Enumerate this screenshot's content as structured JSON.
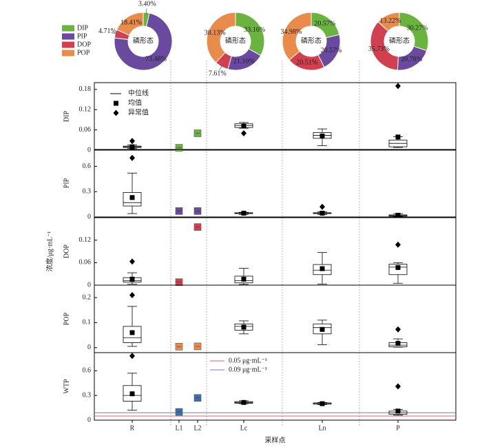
{
  "chart_data": [
    {
      "type": "pie",
      "center_label": "磷形态",
      "categories": [
        "DIP",
        "PIP",
        "DOP",
        "POP"
      ],
      "colors": [
        "#6ab33f",
        "#6a4a9e",
        "#d1404f",
        "#e98b4a"
      ],
      "values": [
        3.4,
        73.48,
        4.71,
        18.41
      ],
      "value_labels": [
        "3.40%",
        "73.48%",
        "4.71%",
        "18.41%"
      ]
    },
    {
      "type": "pie",
      "center_label": "磷形态",
      "categories": [
        "DIP",
        "PIP",
        "DOP",
        "POP"
      ],
      "colors": [
        "#6ab33f",
        "#6a4a9e",
        "#d1404f",
        "#e98b4a"
      ],
      "values": [
        33.16,
        21.1,
        7.61,
        38.13
      ],
      "value_labels": [
        "33.16%",
        "21.10%",
        "7.61%",
        "38.13%"
      ]
    },
    {
      "type": "pie",
      "center_label": "磷形态",
      "categories": [
        "DIP",
        "PIP",
        "DOP",
        "POP"
      ],
      "colors": [
        "#6ab33f",
        "#6a4a9e",
        "#d1404f",
        "#e98b4a"
      ],
      "values": [
        20.57,
        20.57,
        20.51,
        34.98
      ],
      "value_labels": [
        "20.57%",
        "20.57%",
        "20.51%",
        "34.98%"
      ]
    },
    {
      "type": "pie",
      "center_label": "磷形态",
      "categories": [
        "DIP",
        "PIP",
        "DOP",
        "POP"
      ],
      "colors": [
        "#6ab33f",
        "#6a4a9e",
        "#d1404f",
        "#e98b4a"
      ],
      "values": [
        30.27,
        20.78,
        35.73,
        13.22
      ],
      "value_labels": [
        "30.27%",
        "20.78%",
        "35.73%",
        "13.22%"
      ]
    },
    {
      "type": "box",
      "ylabel": "DIP",
      "ylim": [
        0,
        0.2
      ],
      "yticks": [
        0,
        0.06,
        0.12,
        0.18
      ],
      "legend": [
        "中位线",
        "均值",
        "异常值"
      ],
      "boxes": [
        {
          "min": 0.005,
          "q1": 0.008,
          "median": 0.01,
          "q3": 0.012,
          "max": 0.015,
          "mean": 0.01,
          "outliers": [
            0.027
          ]
        },
        {
          "mean": 0.007,
          "color": "#6ab33f"
        },
        {
          "mean": 0.05,
          "color": "#6ab33f"
        },
        {
          "min": 0.065,
          "q1": 0.067,
          "median": 0.073,
          "q3": 0.078,
          "max": 0.082,
          "mean": 0.072,
          "outliers": [
            0.05
          ]
        },
        {
          "min": 0.013,
          "q1": 0.035,
          "median": 0.044,
          "q3": 0.052,
          "max": 0.063,
          "mean": 0.042,
          "outliers": []
        },
        {
          "min": 0.008,
          "q1": 0.01,
          "median": 0.02,
          "q3": 0.03,
          "max": 0.04,
          "mean": 0.039,
          "outliers": [
            0.19
          ]
        }
      ]
    },
    {
      "type": "box",
      "ylabel": "PIP",
      "ylim": [
        0,
        0.8
      ],
      "yticks": [
        0,
        0.3,
        0.6
      ],
      "boxes": [
        {
          "min": 0.04,
          "q1": 0.13,
          "median": 0.17,
          "q3": 0.29,
          "max": 0.52,
          "mean": 0.23,
          "outliers": [
            0.7
          ]
        },
        {
          "mean": 0.07,
          "color": "#6a4a9e"
        },
        {
          "mean": 0.07,
          "color": "#6a4a9e"
        },
        {
          "min": 0.03,
          "q1": 0.04,
          "median": 0.045,
          "q3": 0.05,
          "max": 0.055,
          "mean": 0.045,
          "outliers": []
        },
        {
          "min": 0.03,
          "q1": 0.04,
          "median": 0.045,
          "q3": 0.05,
          "max": 0.06,
          "mean": 0.045,
          "outliers": [
            0.12
          ]
        },
        {
          "min": 0.005,
          "q1": 0.01,
          "median": 0.015,
          "q3": 0.025,
          "max": 0.04,
          "mean": 0.02,
          "outliers": []
        }
      ]
    },
    {
      "type": "box",
      "ylabel": "DOP",
      "axis_title": "浓度/μg·mL⁻¹",
      "ylim": [
        0,
        0.18
      ],
      "yticks": [
        0,
        0.06,
        0.12
      ],
      "boxes": [
        {
          "min": 0.003,
          "q1": 0.008,
          "median": 0.012,
          "q3": 0.02,
          "max": 0.033,
          "mean": 0.016,
          "outliers": [
            0.063
          ]
        },
        {
          "mean": 0.008,
          "color": "#d1404f"
        },
        {
          "mean": 0.155,
          "color": "#d1404f"
        },
        {
          "min": 0.002,
          "q1": 0.006,
          "median": 0.012,
          "q3": 0.024,
          "max": 0.045,
          "mean": 0.016,
          "outliers": []
        },
        {
          "min": 0.003,
          "q1": 0.028,
          "median": 0.04,
          "q3": 0.055,
          "max": 0.087,
          "mean": 0.044,
          "outliers": []
        },
        {
          "min": 0.005,
          "q1": 0.028,
          "median": 0.048,
          "q3": 0.056,
          "max": 0.06,
          "mean": 0.047,
          "outliers": [
            0.108
          ]
        }
      ]
    },
    {
      "type": "box",
      "ylabel": "POP",
      "ylim": [
        -0.02,
        0.25
      ],
      "yticks": [
        0,
        0.1,
        0.2
      ],
      "boxes": [
        {
          "min": 0.005,
          "q1": 0.02,
          "median": 0.04,
          "q3": 0.085,
          "max": 0.165,
          "mean": 0.06,
          "outliers": [
            0.21
          ]
        },
        {
          "mean": 0.004,
          "color": "#e98b4a"
        },
        {
          "mean": 0.005,
          "color": "#e98b4a"
        },
        {
          "min": 0.055,
          "q1": 0.07,
          "median": 0.085,
          "q3": 0.095,
          "max": 0.107,
          "mean": 0.082,
          "outliers": []
        },
        {
          "min": 0.012,
          "q1": 0.055,
          "median": 0.08,
          "q3": 0.095,
          "max": 0.11,
          "mean": 0.073,
          "outliers": []
        },
        {
          "min": 0.002,
          "q1": 0.003,
          "median": 0.01,
          "q3": 0.02,
          "max": 0.035,
          "mean": 0.017,
          "outliers": [
            0.073
          ]
        }
      ]
    },
    {
      "type": "box",
      "ylabel": "WTP",
      "xlabel": "采样点",
      "ylim": [
        0,
        0.82
      ],
      "yticks": [
        0,
        0.3,
        0.6
      ],
      "categories": [
        "R",
        "L1",
        "L2",
        "Lc",
        "Ln",
        "P"
      ],
      "hlines": [
        {
          "value": 0.05,
          "label": "0.05 μg·mL⁻¹",
          "color": "#e0605f"
        },
        {
          "value": 0.09,
          "label": "0.09 μg·mL⁻¹",
          "color": "#7a78c0"
        }
      ],
      "boxes": [
        {
          "min": 0.12,
          "q1": 0.23,
          "median": 0.3,
          "q3": 0.42,
          "max": 0.57,
          "mean": 0.32,
          "outliers": [
            0.78
          ]
        },
        {
          "mean": 0.1,
          "color": "#3b6fb0"
        },
        {
          "mean": 0.27,
          "color": "#3b6fb0"
        },
        {
          "min": 0.2,
          "q1": 0.205,
          "median": 0.215,
          "q3": 0.225,
          "max": 0.235,
          "mean": 0.215,
          "outliers": []
        },
        {
          "min": 0.19,
          "q1": 0.195,
          "median": 0.2,
          "q3": 0.21,
          "max": 0.215,
          "mean": 0.2,
          "outliers": []
        },
        {
          "min": 0.06,
          "q1": 0.07,
          "median": 0.09,
          "q3": 0.11,
          "max": 0.13,
          "mean": 0.11,
          "outliers": [
            0.41
          ]
        }
      ]
    }
  ]
}
